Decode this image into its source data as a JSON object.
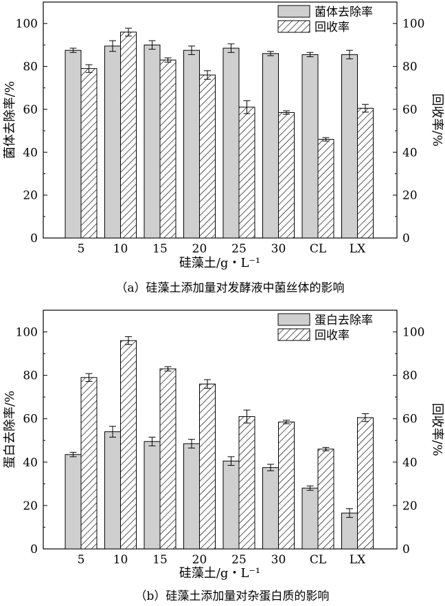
{
  "chart_data": [
    {
      "type": "bar",
      "caption": "（a）硅藻土添加量对发酵液中菌丝体的影响",
      "categories": [
        "5",
        "10",
        "15",
        "20",
        "25",
        "30",
        "CL",
        "LX"
      ],
      "xlabel": "硅藻土/g・L⁻¹",
      "ylabel": "菌体去除率/%",
      "ylabel_right": "回收率/%",
      "ylim": [
        0,
        110
      ],
      "yticks": [
        0,
        20,
        40,
        60,
        80,
        100
      ],
      "legend_position": "top-right",
      "grid": false,
      "series": [
        {
          "name": "菌体去除率",
          "fill": "gray",
          "color": "#cfcfcf",
          "values": [
            87.5,
            89.5,
            90.0,
            87.5,
            88.5,
            86.0,
            85.5,
            85.5
          ],
          "errors": [
            1.0,
            2.5,
            2.0,
            2.0,
            2.0,
            1.0,
            1.0,
            2.0
          ]
        },
        {
          "name": "回收率",
          "fill": "hatched",
          "color": "#ffffff",
          "values": [
            79.0,
            96.0,
            83.0,
            76.0,
            61.0,
            58.5,
            46.0,
            60.5
          ],
          "errors": [
            1.8,
            1.8,
            1.0,
            2.0,
            3.0,
            0.8,
            0.8,
            1.8
          ]
        }
      ]
    },
    {
      "type": "bar",
      "caption": "（b）硅藻土添加量对杂蛋白质的影响",
      "categories": [
        "5",
        "10",
        "15",
        "20",
        "25",
        "30",
        "CL",
        "LX"
      ],
      "xlabel": "硅藻土/g・L⁻¹",
      "ylabel": "蛋白去除率/%",
      "ylabel_right": "回收率/%",
      "ylim": [
        0,
        110
      ],
      "yticks": [
        0,
        20,
        40,
        60,
        80,
        100
      ],
      "legend_position": "top-right",
      "grid": false,
      "series": [
        {
          "name": "蛋白去除率",
          "fill": "gray",
          "color": "#cfcfcf",
          "values": [
            43.5,
            54.0,
            49.5,
            48.5,
            40.5,
            37.5,
            28.0,
            16.5
          ],
          "errors": [
            1.0,
            2.5,
            2.0,
            2.0,
            2.0,
            1.5,
            1.0,
            2.0
          ]
        },
        {
          "name": "回收率",
          "fill": "hatched",
          "color": "#ffffff",
          "values": [
            79.0,
            96.0,
            83.0,
            76.0,
            61.0,
            58.5,
            46.0,
            60.5
          ],
          "errors": [
            1.8,
            1.8,
            1.0,
            2.0,
            3.0,
            0.8,
            0.8,
            1.8
          ]
        }
      ]
    }
  ]
}
